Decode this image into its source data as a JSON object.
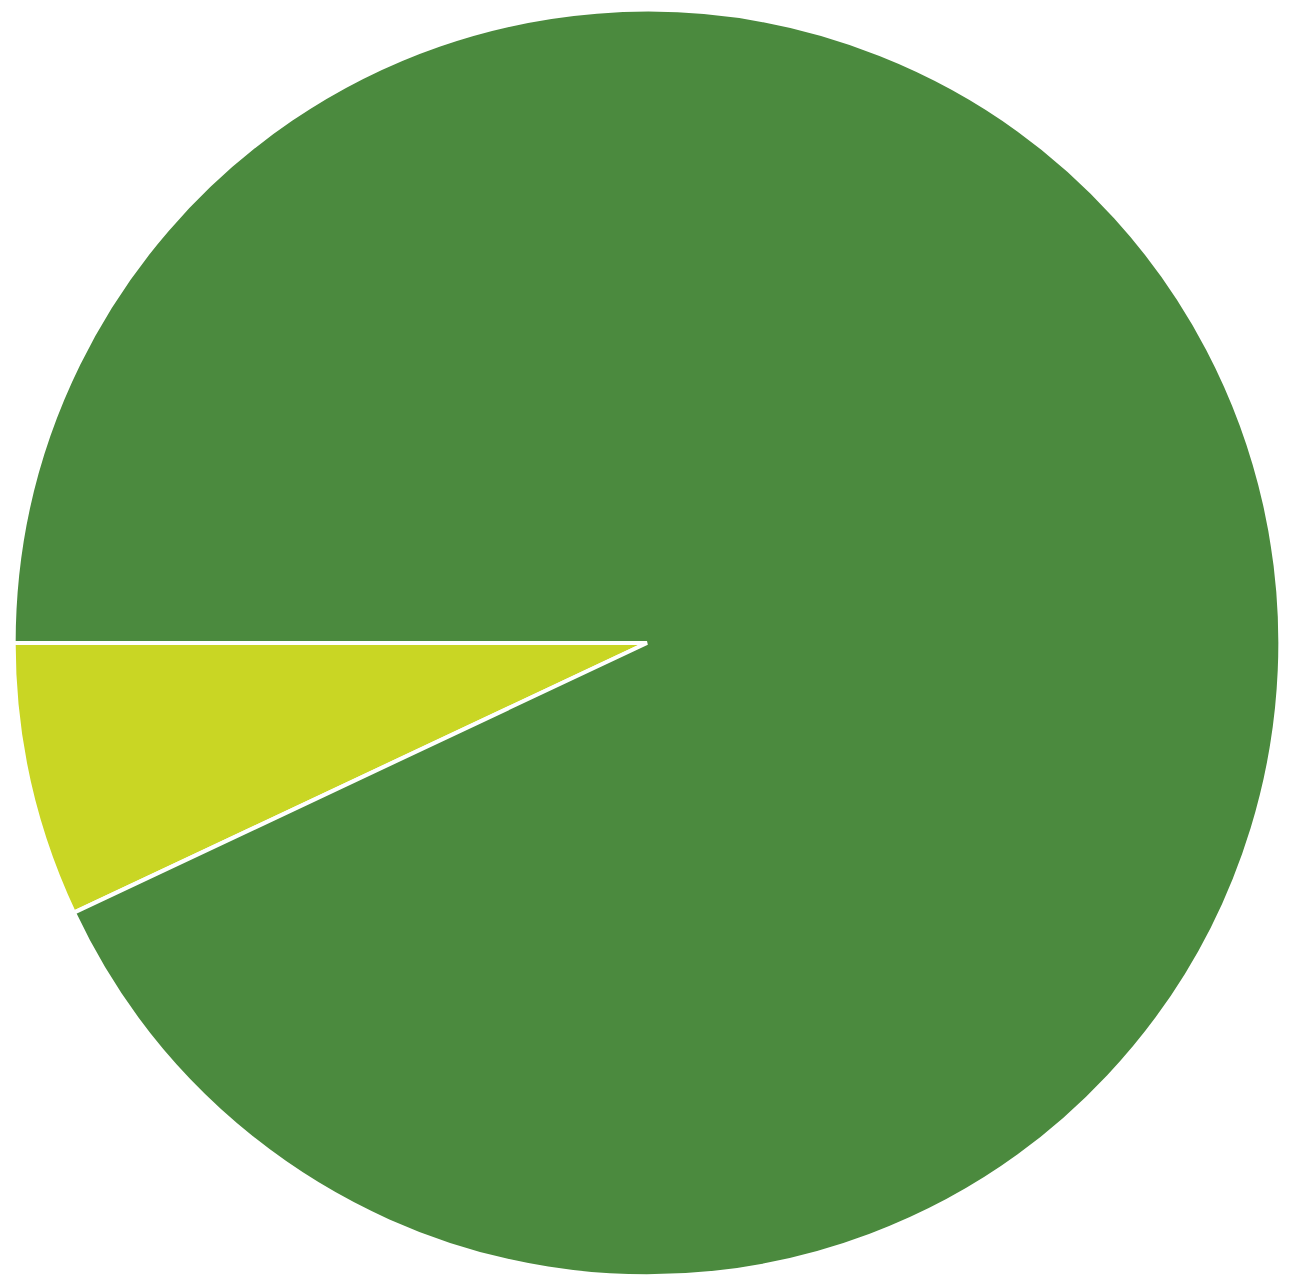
{
  "chart_data": {
    "type": "pie",
    "categories": [
      null,
      null
    ],
    "values": [
      7,
      93
    ],
    "colors": [
      "#c9d624",
      "#4b8a3e"
    ]
  }
}
